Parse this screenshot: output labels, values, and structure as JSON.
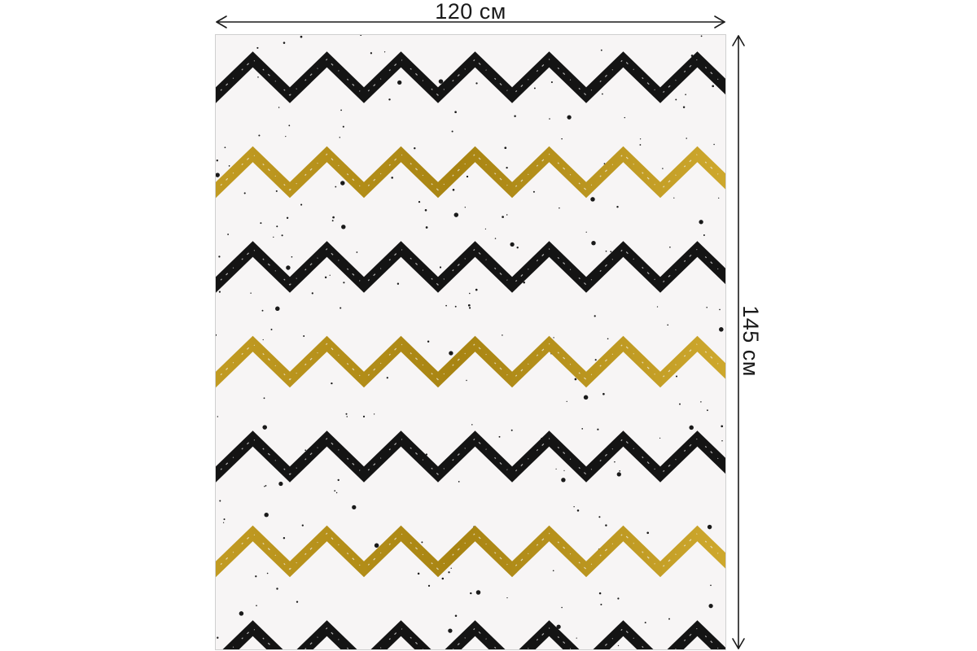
{
  "dimensions": {
    "width_label": "120 см",
    "height_label": "145 см"
  },
  "product": {
    "pattern": "chevron",
    "colors": {
      "background": "#f7f5f5",
      "black_stripe": "#141414",
      "gold_stripe": "#c9a227",
      "gold_shade": "#a88412",
      "speckle": "#1a1a1a"
    },
    "stripes": [
      "black",
      "gold",
      "black",
      "gold",
      "black",
      "gold",
      "black"
    ]
  }
}
